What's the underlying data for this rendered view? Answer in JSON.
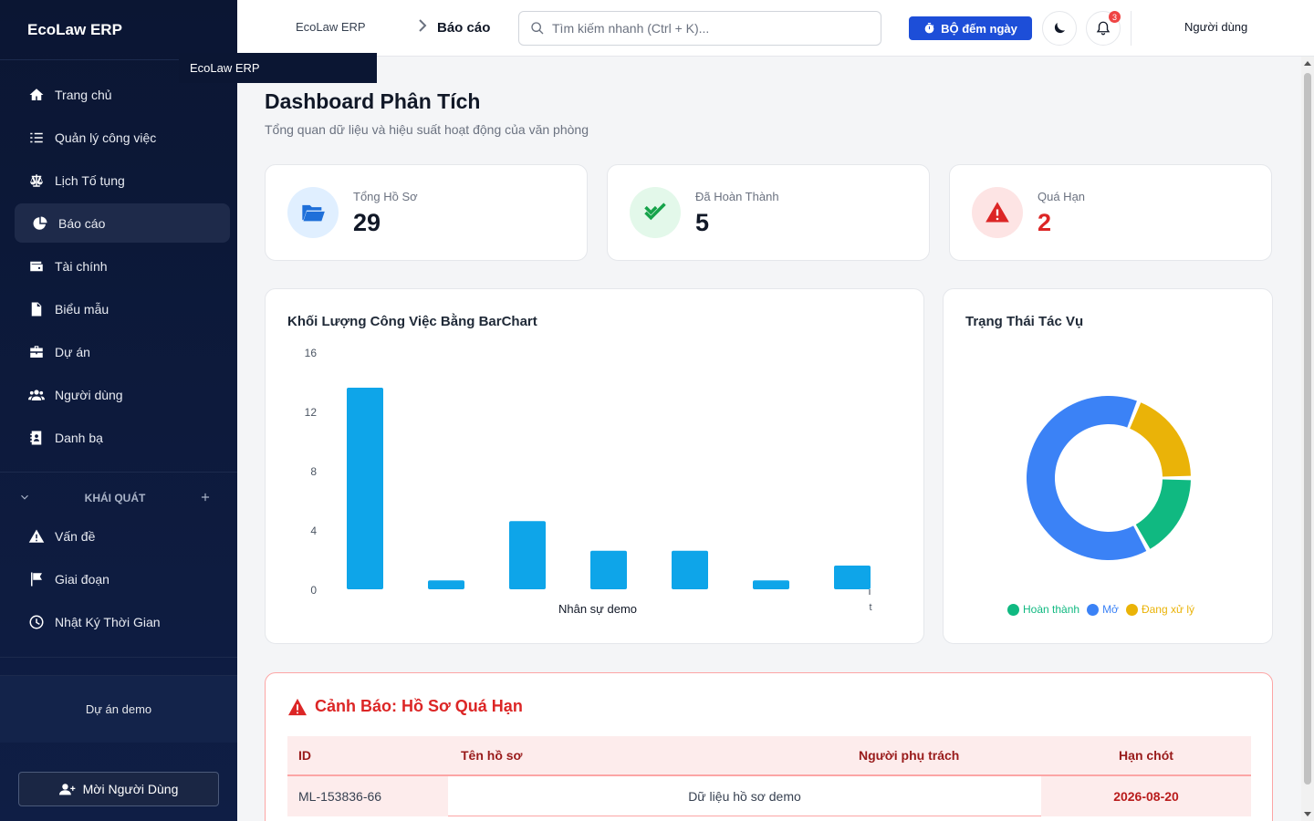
{
  "app": {
    "brand": "EcoLaw ERP",
    "tooltip": "EcoLaw ERP"
  },
  "sidebar": {
    "items": [
      {
        "label": "Trang chủ",
        "icon": "home-icon"
      },
      {
        "label": "Quản lý công việc",
        "icon": "task-list-icon"
      },
      {
        "label": "Lịch Tố tụng",
        "icon": "scale-icon"
      },
      {
        "label": "Báo cáo",
        "icon": "pie-chart-icon",
        "active": true
      },
      {
        "label": "Tài chính",
        "icon": "wallet-icon"
      },
      {
        "label": "Biểu mẫu",
        "icon": "file-icon"
      },
      {
        "label": "Dự án",
        "icon": "briefcase-icon"
      },
      {
        "label": "Người dùng",
        "icon": "users-icon"
      },
      {
        "label": "Danh bạ",
        "icon": "contact-book-icon"
      }
    ],
    "section_title": "KHÁI QUÁT",
    "section_items": [
      {
        "label": "Vấn đề",
        "icon": "warning-icon"
      },
      {
        "label": "Giai đoạn",
        "icon": "flag-icon"
      },
      {
        "label": "Nhật Ký Thời Gian",
        "icon": "clock-icon"
      }
    ],
    "project": "Dự án demo",
    "invite_label": "Mời Người Dùng"
  },
  "topbar": {
    "breadcrumb_home": "EcoLaw ERP",
    "breadcrumb_current": "Báo cáo",
    "search_placeholder": "Tìm kiếm nhanh (Ctrl + K)...",
    "timer_label": "BỘ đếm ngày",
    "notification_count": "3",
    "user_label": "Người dùng"
  },
  "page": {
    "title": "Dashboard Phân Tích",
    "subtitle": "Tổng quan dữ liệu và hiệu suất hoạt động của văn phòng"
  },
  "stats": [
    {
      "label": "Tổng Hồ Sơ",
      "value": "29",
      "color": "#1e6fd9",
      "bg": "#e0efff",
      "icon": "folder-icon"
    },
    {
      "label": "Đã Hoàn Thành",
      "value": "5",
      "color": "#16a34a",
      "bg": "#e3f8ea",
      "icon": "double-check-icon"
    },
    {
      "label": "Quá Hạn",
      "value": "2",
      "color": "#dc2626",
      "bg": "#fde4e4",
      "icon": "alert-triangle-icon"
    }
  ],
  "bar_card": {
    "title": "Khối Lượng Công Việc Bằng BarChart"
  },
  "donut_card": {
    "title": "Trạng Thái Tác Vụ"
  },
  "chart_data": [
    {
      "type": "bar",
      "title": "Khối Lượng Công Việc Bằng BarChart",
      "categories": [
        "",
        "",
        "",
        "",
        "",
        "",
        ""
      ],
      "values": [
        13.6,
        0.6,
        4.6,
        2.6,
        2.6,
        0.6,
        1.6
      ],
      "ylim": [
        0,
        16
      ],
      "yticks": [
        "16",
        "12",
        "8",
        "4",
        "0"
      ],
      "xlabel": "Nhân sự demo",
      "x_tick_fragment": "t",
      "bar_color": "#0ea5e9",
      "grid": false
    },
    {
      "type": "pie",
      "donut": true,
      "title": "Trạng Thái Tác Vụ",
      "slices": [
        {
          "name": "Hoàn thành",
          "value": 17,
          "color": "#10b981"
        },
        {
          "name": "Mở",
          "value": 64,
          "color": "#3b82f6"
        },
        {
          "name": "Đang xử lý",
          "value": 19,
          "color": "#eab308"
        }
      ],
      "legend": "bottom"
    }
  ],
  "alert": {
    "title": "Cảnh Báo: Hồ Sơ Quá Hạn",
    "columns": [
      "ID",
      "Tên hồ sơ",
      "Người phụ trách",
      "Hạn chót"
    ],
    "rows": [
      {
        "id": "ML-153836-66",
        "name": "Dữ liệu hồ sơ demo",
        "owner": "",
        "deadline": "2026-08-20"
      }
    ]
  }
}
